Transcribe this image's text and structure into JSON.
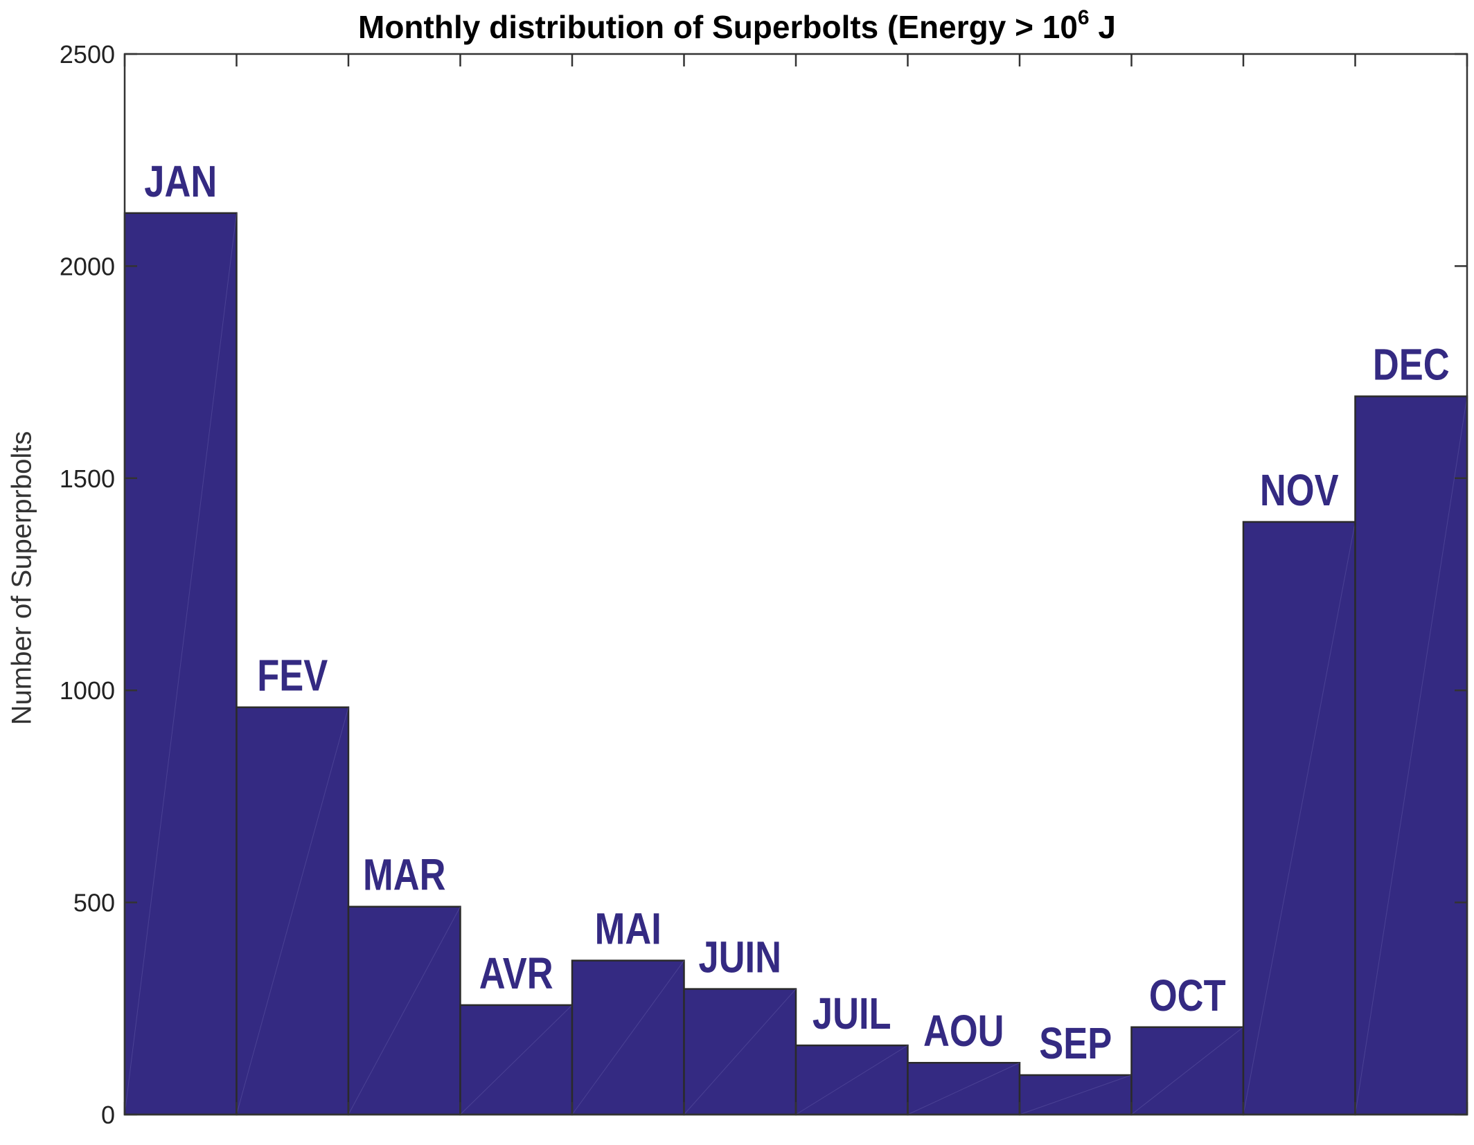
{
  "title": {
    "text": "Monthly distribution of Superbolts (Energy > 10",
    "superscript": "6",
    "suffix": " J"
  },
  "chart_data": {
    "type": "bar",
    "title": "Monthly distribution of Superbolts (Energy > 10^6 J",
    "xlabel": "",
    "ylabel": "Number of Superprbolts",
    "ylim": [
      0,
      2500
    ],
    "yticks": [
      0,
      500,
      1000,
      1500,
      2000,
      2500
    ],
    "categories": [
      "JAN",
      "FEV",
      "MAR",
      "AVR",
      "MAI",
      "JUIN",
      "JUIL",
      "AOU",
      "SEP",
      "OCT",
      "NOV",
      "DEC"
    ],
    "values": [
      2125,
      960,
      490,
      258,
      363,
      296,
      163,
      122,
      93,
      206,
      1397,
      1693
    ],
    "grid": false,
    "legend": "none",
    "colors": {
      "bar_fill": "#342A82",
      "bar_edge": "#2a2a2a",
      "label": "#342A82",
      "axis": "#333333"
    }
  }
}
